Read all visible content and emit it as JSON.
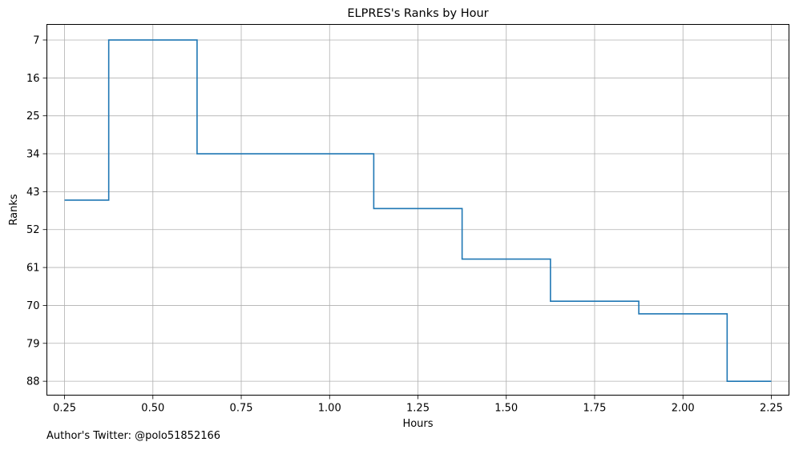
{
  "chart_data": {
    "type": "line",
    "step": "mid",
    "title": "ELPRES's Ranks by Hour",
    "xlabel": "Hours",
    "ylabel": "Ranks",
    "xlim": [
      0.2,
      2.3
    ],
    "ylim": [
      91.3,
      3.3
    ],
    "y_inverted": true,
    "x_ticks": [
      0.25,
      0.5,
      0.75,
      1.0,
      1.25,
      1.5,
      1.75,
      2.0,
      2.25
    ],
    "x_tick_labels": [
      "0.25",
      "0.50",
      "0.75",
      "1.00",
      "1.25",
      "1.50",
      "1.75",
      "2.00",
      "2.25"
    ],
    "y_ticks": [
      7,
      16,
      25,
      34,
      43,
      52,
      61,
      70,
      79,
      88
    ],
    "y_tick_labels": [
      "7",
      "16",
      "25",
      "34",
      "43",
      "52",
      "61",
      "70",
      "79",
      "88"
    ],
    "grid": true,
    "color": "#1f77b4",
    "series": [
      {
        "x": [
          0.25,
          0.5,
          0.75,
          1.0,
          1.25,
          1.5,
          1.75,
          2.0,
          2.25
        ],
        "y": [
          45,
          7,
          34,
          34,
          47,
          59,
          69,
          72,
          88
        ]
      }
    ]
  },
  "footer": {
    "text": "Author's Twitter: @polo51852166"
  }
}
